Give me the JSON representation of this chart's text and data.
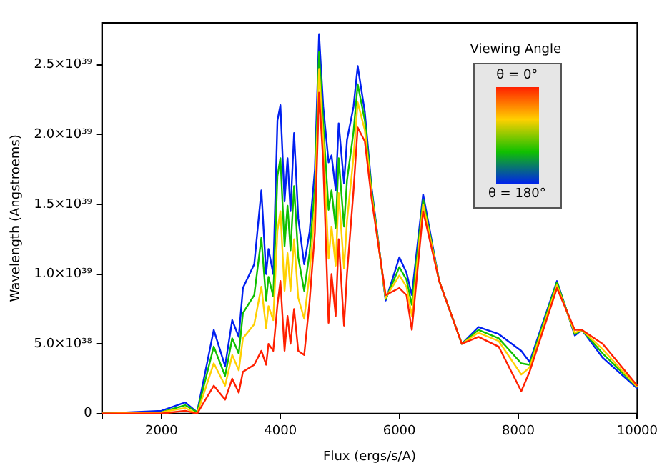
{
  "chart_data": {
    "type": "line",
    "xlabel": "Flux (ergs/s/A)",
    "ylabel": "Wavelength (Angstroems)",
    "annotations": [
      "Viewing Angle",
      "θ = 0°",
      "θ = 180°"
    ],
    "x": [
      1000,
      2000,
      2400,
      2600,
      2880,
      3070,
      3190,
      3300,
      3370,
      3560,
      3680,
      3760,
      3800,
      3880,
      3950,
      4000,
      4070,
      4120,
      4170,
      4230,
      4300,
      4400,
      4490,
      4580,
      4650,
      4720,
      4810,
      4860,
      4930,
      4980,
      5070,
      5120,
      5230,
      5300,
      5420,
      5530,
      5770,
      6000,
      6120,
      6210,
      6400,
      6670,
      7050,
      7330,
      7670,
      8050,
      8190,
      8650,
      8950,
      9070,
      9420,
      10000
    ],
    "xlim": [
      1000,
      10000
    ],
    "xticks": [
      {
        "value": 1000,
        "label": null
      },
      2000,
      4000,
      6000,
      8000,
      10000
    ],
    "ylim": [
      0,
      2.8e+39
    ],
    "yticks": [
      0,
      {
        "value": 5e+38,
        "label": "5.0×10³⁸"
      },
      {
        "value": 1e+39,
        "label": "1.0×10³⁹"
      },
      {
        "value": 1.5e+39,
        "label": "1.5×10³⁹"
      },
      {
        "value": 2e+39,
        "label": "2.0×10³⁹"
      },
      {
        "value": 2.5e+39,
        "label": "2.5×10³⁹"
      }
    ],
    "marker": "none",
    "line_style": "solid",
    "legend": false,
    "series": [
      {
        "color": "#ff2000",
        "values": [
          0,
          0,
          2e+37,
          0,
          2e+38,
          1e+38,
          2.5e+38,
          1.5e+38,
          3e+38,
          3.5e+38,
          4.5e+38,
          3.5e+38,
          5e+38,
          4.5e+38,
          7.8e+38,
          9.5e+38,
          4.5e+38,
          7e+38,
          5e+38,
          7.5e+38,
          4.5e+38,
          4.2e+38,
          8e+38,
          1.3e+39,
          2.3e+39,
          1.8e+39,
          6.5e+38,
          1e+39,
          7e+38,
          1.25e+39,
          6.3e+38,
          1e+39,
          1.6e+39,
          2.05e+39,
          1.95e+39,
          1.55e+39,
          8.5e+38,
          9e+38,
          8.5e+38,
          6e+38,
          1.45e+39,
          9.5e+38,
          5e+38,
          5.5e+38,
          4.8e+38,
          1.6e+38,
          3e+38,
          9e+38,
          6e+38,
          6e+38,
          5e+38,
          2e+38
        ]
      },
      {
        "color": "#ffd000",
        "values": [
          0,
          1e+37,
          4e+37,
          0,
          3.6e+38,
          2e+38,
          4.2e+38,
          3.1e+38,
          5.4e+38,
          6.4e+38,
          9.1e+38,
          6.1e+38,
          7.7e+38,
          6.7e+38,
          1.31e+39,
          1.45e+39,
          8.8e+38,
          1.15e+39,
          8.8e+38,
          1.25e+39,
          8.3e+38,
          6.8e+38,
          1e+39,
          1.48e+39,
          2.47e+39,
          1.96e+39,
          1.11e+39,
          1.34e+39,
          1.06e+39,
          1.58e+39,
          1.04e+39,
          1.38e+39,
          1.84e+39,
          2.23e+39,
          2.03e+39,
          1.58e+39,
          8.3e+38,
          9.9e+38,
          9.1e+38,
          7e+38,
          1.5e+39,
          9.5e+38,
          5e+38,
          5.8e+38,
          5.2e+38,
          2.8e+38,
          3.3e+38,
          9.2e+38,
          5.8e+38,
          6e+38,
          4.6e+38,
          1.9e+38
        ]
      },
      {
        "color": "#10c000",
        "values": [
          0,
          1e+37,
          6e+37,
          1e+37,
          4.8e+38,
          2.7e+38,
          5.4e+38,
          4.3e+38,
          7.2e+38,
          8.5e+38,
          1.26e+39,
          8.1e+38,
          9.8e+38,
          8.4e+38,
          1.7e+39,
          1.83e+39,
          1.2e+39,
          1.49e+39,
          1.17e+39,
          1.63e+39,
          1.12e+39,
          8.8e+38,
          1.15e+39,
          1.62e+39,
          2.59e+39,
          2.08e+39,
          1.46e+39,
          1.6e+39,
          1.33e+39,
          1.83e+39,
          1.34e+39,
          1.67e+39,
          2.02e+39,
          2.36e+39,
          2.1e+39,
          1.61e+39,
          8.2e+38,
          1.05e+39,
          9.6e+38,
          7.8e+38,
          1.53e+39,
          9.5e+38,
          5e+38,
          6e+38,
          5.4e+38,
          3.6e+38,
          3.5e+38,
          9.4e+38,
          5.7e+38,
          6e+38,
          4.3e+38,
          1.9e+38
        ]
      },
      {
        "color": "#0020f0",
        "values": [
          0,
          2e+37,
          8e+37,
          1e+37,
          6e+38,
          3.4e+38,
          6.7e+38,
          5.5e+38,
          9e+38,
          1.07e+39,
          1.6e+39,
          1e+39,
          1.18e+39,
          1e+39,
          2.1e+39,
          2.21e+39,
          1.52e+39,
          1.83e+39,
          1.45e+39,
          2.01e+39,
          1.4e+39,
          1.07e+39,
          1.3e+39,
          1.75e+39,
          2.72e+39,
          2.2e+39,
          1.8e+39,
          1.85e+39,
          1.6e+39,
          2.08e+39,
          1.65e+39,
          1.96e+39,
          2.2e+39,
          2.49e+39,
          2.16e+39,
          1.63e+39,
          8.1e+38,
          1.12e+39,
          1.01e+39,
          8.5e+38,
          1.57e+39,
          9.5e+38,
          5e+38,
          6.2e+38,
          5.7e+38,
          4.5e+38,
          3.7e+38,
          9.5e+38,
          5.6e+38,
          6e+38,
          4e+38,
          1.8e+38
        ]
      }
    ]
  }
}
